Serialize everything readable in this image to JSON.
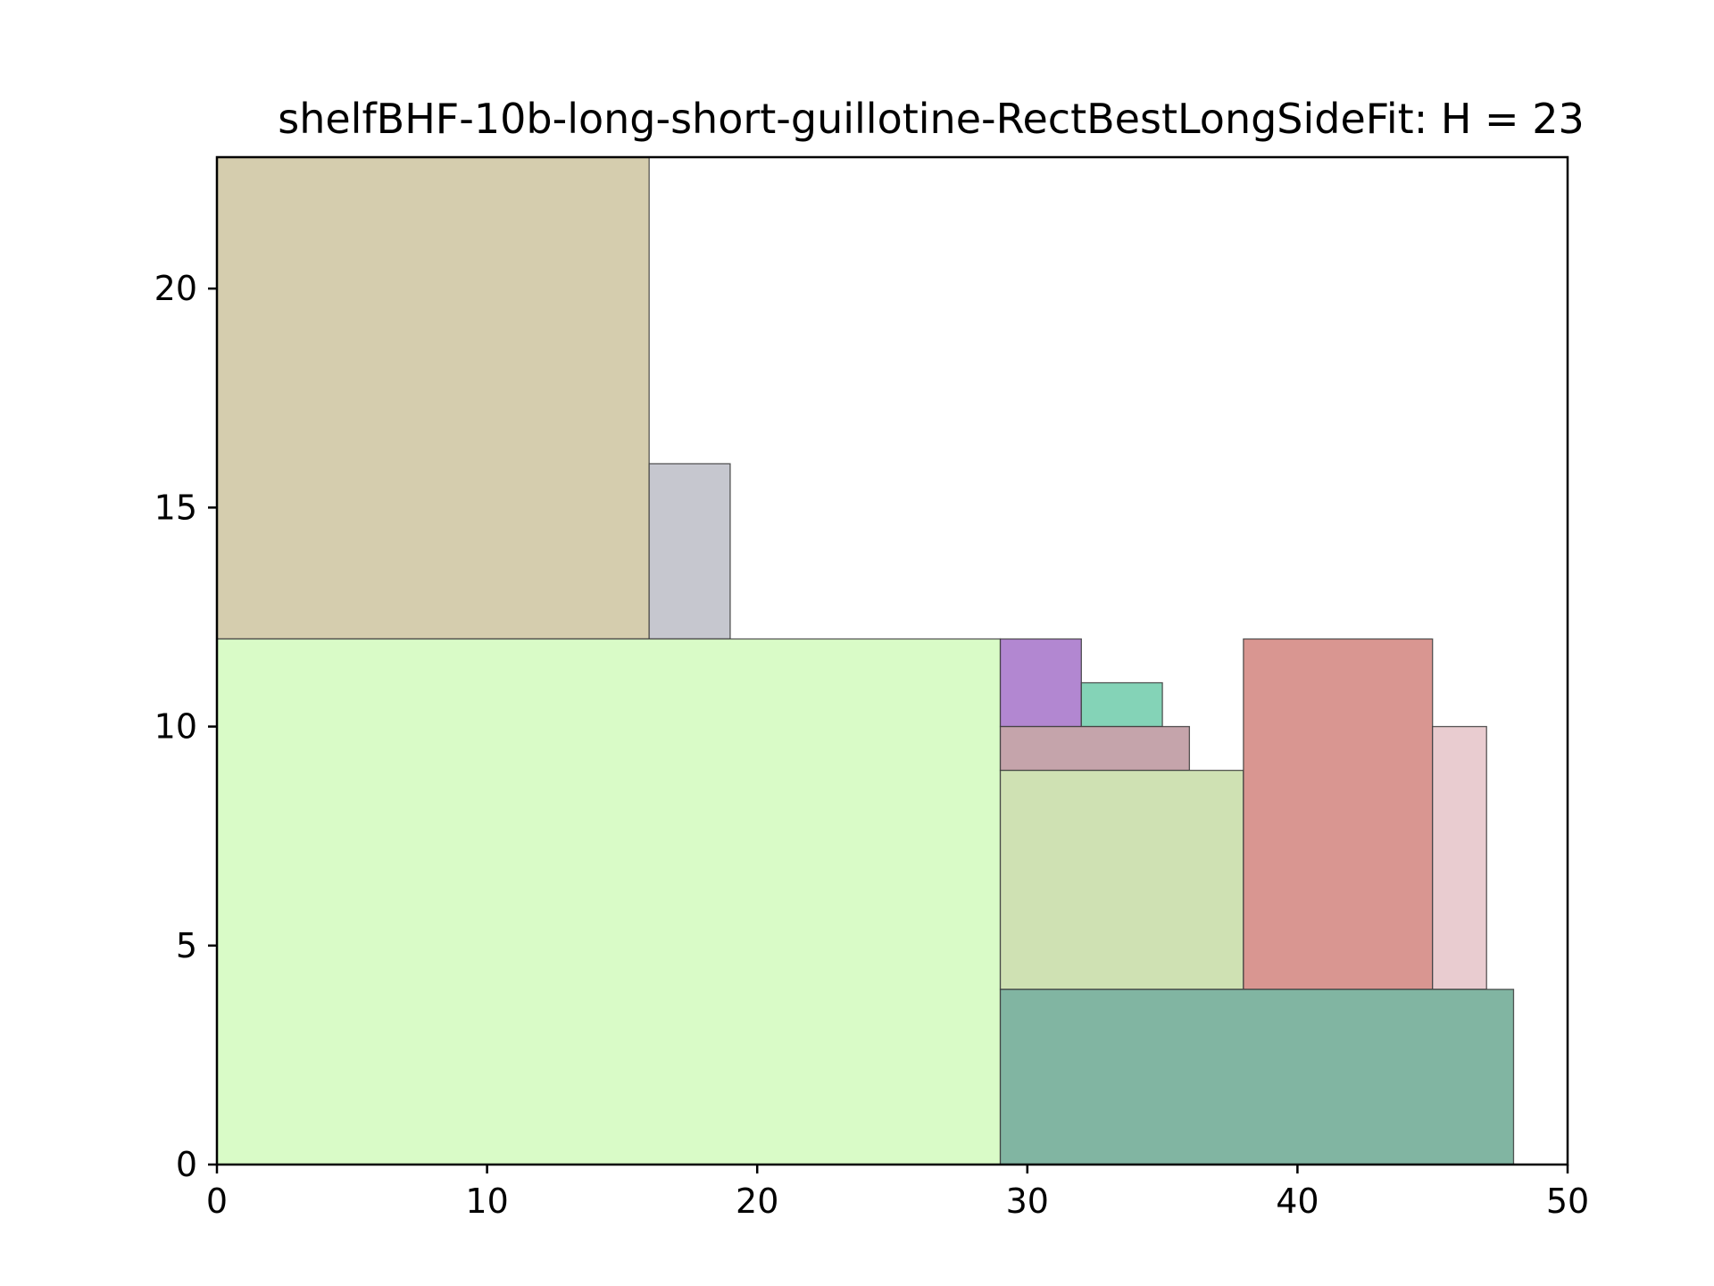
{
  "chart_data": {
    "type": "rectangle-packing",
    "title": "shelfBHF-10b-long-short-guillotine-RectBestLongSideFit: H = 23",
    "xlabel": "",
    "ylabel": "",
    "xlim": [
      0,
      50
    ],
    "ylim": [
      0,
      23
    ],
    "x_ticks": [
      0,
      10,
      20,
      30,
      40,
      50
    ],
    "y_ticks": [
      0,
      5,
      10,
      15,
      20
    ],
    "grid": false,
    "legend": "none",
    "rectangles": [
      {
        "x": 0,
        "y": 12,
        "width": 16,
        "height": 11,
        "color": "#d5cdae"
      },
      {
        "x": 16,
        "y": 12,
        "width": 3,
        "height": 4,
        "color": "#c6c7cf"
      },
      {
        "x": 0,
        "y": 0,
        "width": 29,
        "height": 12,
        "color": "#d9fbc7"
      },
      {
        "x": 29,
        "y": 10,
        "width": 3,
        "height": 2,
        "color": "#b287d1"
      },
      {
        "x": 32,
        "y": 10,
        "width": 3,
        "height": 1,
        "color": "#84d3b7"
      },
      {
        "x": 29,
        "y": 9,
        "width": 7,
        "height": 1,
        "color": "#c5a4ab"
      },
      {
        "x": 29,
        "y": 4,
        "width": 9,
        "height": 5,
        "color": "#cfe1b3"
      },
      {
        "x": 38,
        "y": 4,
        "width": 7,
        "height": 8,
        "color": "#d99691"
      },
      {
        "x": 45,
        "y": 4,
        "width": 2,
        "height": 6,
        "color": "#e9ccd0"
      },
      {
        "x": 29,
        "y": 0,
        "width": 19,
        "height": 4,
        "color": "#81b5a2"
      }
    ]
  }
}
